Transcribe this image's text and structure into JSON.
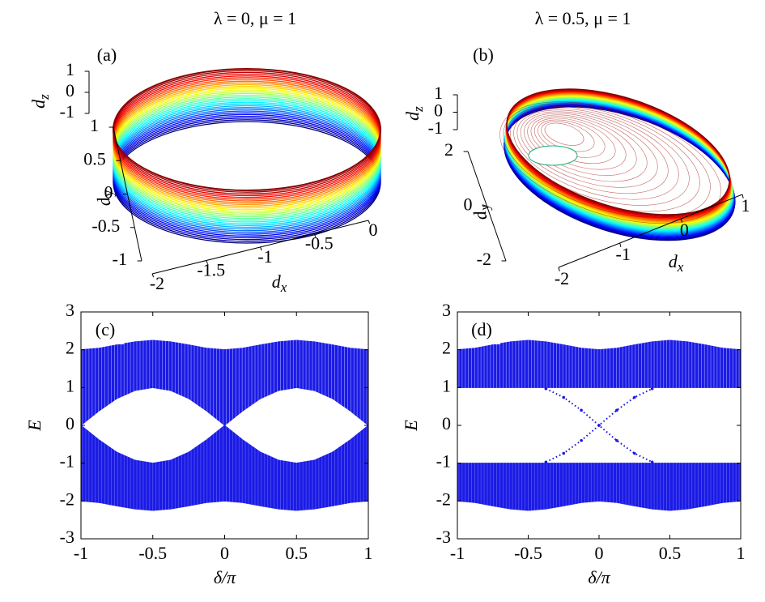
{
  "chart_data": [
    {
      "type": "surface3d",
      "title": "λ = 0,  μ = 1",
      "annotation": "(a)",
      "xlabel": [
        "d",
        "x"
      ],
      "ylabel": [
        "d",
        "y"
      ],
      "zlabel": [
        "d",
        "z"
      ],
      "xlim": [
        -2,
        0
      ],
      "xticks": [
        -2,
        -1.5,
        -1,
        -0.5,
        0
      ],
      "ylim": [
        -1,
        1
      ],
      "yticks": [
        -1,
        -0.5,
        0,
        0.5,
        1
      ],
      "zlim": [
        -1,
        1
      ],
      "zticks": [
        -1,
        0,
        1
      ]
    },
    {
      "type": "surface3d",
      "title": "λ = 0.5,  μ = 1",
      "annotation": "(b)",
      "xlabel": [
        "d",
        "x"
      ],
      "ylabel": [
        "d",
        "y"
      ],
      "zlabel": [
        "d",
        "z"
      ],
      "xlim": [
        -2,
        1
      ],
      "xticks": [
        -2,
        -1,
        0,
        1
      ],
      "ylim": [
        -2,
        2
      ],
      "yticks": [
        -2,
        0,
        2
      ],
      "zlim": [
        -1,
        1
      ],
      "zticks": [
        -1,
        0,
        1
      ]
    },
    {
      "type": "band",
      "annotation": "(c)",
      "xlabel": "δ/π",
      "ylabel": "E",
      "x": [
        -1,
        -0.875,
        -0.75,
        -0.625,
        -0.5,
        -0.375,
        -0.25,
        -0.125,
        0,
        0.125,
        0.25,
        0.375,
        0.5,
        0.625,
        0.75,
        0.875,
        1
      ],
      "xlim": [
        -1,
        1
      ],
      "xticks": [
        -1,
        -0.5,
        0,
        0.5,
        1
      ],
      "ylim": [
        -3,
        3
      ],
      "yticks": [
        -3,
        -2,
        -1,
        0,
        1,
        2,
        3
      ],
      "series": [
        {
          "color": "#1a1ae6",
          "values": [
            2,
            2.04,
            2.13,
            2.21,
            2.25,
            2.21,
            2.13,
            2.04,
            2,
            2.04,
            2.13,
            2.21,
            2.25,
            2.21,
            2.13,
            2.04,
            2
          ],
          "base": [
            0,
            0.38,
            0.71,
            0.92,
            1,
            0.92,
            0.71,
            0.38,
            0,
            0.38,
            0.71,
            0.92,
            1,
            0.92,
            0.71,
            0.38,
            0
          ]
        },
        {
          "color": "#1a1ae6",
          "values": [
            0,
            -0.38,
            -0.71,
            -0.92,
            -1,
            -0.92,
            -0.71,
            -0.38,
            0,
            -0.38,
            -0.71,
            -0.92,
            -1,
            -0.92,
            -0.71,
            -0.38,
            0
          ],
          "base": [
            -2,
            -2.04,
            -2.13,
            -2.21,
            -2.25,
            -2.21,
            -2.13,
            -2.04,
            -2,
            -2.04,
            -2.13,
            -2.21,
            -2.25,
            -2.21,
            -2.13,
            -2.04,
            -2
          ]
        }
      ]
    },
    {
      "type": "band",
      "annotation": "(d)",
      "xlabel": "δ/π",
      "ylabel": "E",
      "x": [
        -1,
        -0.875,
        -0.75,
        -0.625,
        -0.5,
        -0.375,
        -0.25,
        -0.125,
        0,
        0.125,
        0.25,
        0.375,
        0.5,
        0.625,
        0.75,
        0.875,
        1
      ],
      "xlim": [
        -1,
        1
      ],
      "xticks": [
        -1,
        -0.5,
        0,
        0.5,
        1
      ],
      "ylim": [
        -3,
        3
      ],
      "yticks": [
        -3,
        -2,
        -1,
        0,
        1,
        2,
        3
      ],
      "series": [
        {
          "color": "#1a1ae6",
          "values": [
            2,
            2.04,
            2.13,
            2.21,
            2.25,
            2.21,
            2.13,
            2.04,
            2,
            2.04,
            2.13,
            2.21,
            2.25,
            2.21,
            2.13,
            2.04,
            2
          ],
          "base": [
            1,
            1,
            1,
            1,
            1,
            1,
            1,
            1,
            1,
            1,
            1,
            1,
            1,
            1,
            1,
            1,
            1
          ]
        },
        {
          "color": "#1a1ae6",
          "values": [
            -1,
            -1,
            -1,
            -1,
            -1,
            -1,
            -1,
            -1,
            -1,
            -1,
            -1,
            -1,
            -1,
            -1,
            -1,
            -1,
            -1
          ],
          "base": [
            -2,
            -2.04,
            -2.13,
            -2.21,
            -2.25,
            -2.21,
            -2.13,
            -2.04,
            -2,
            -2.04,
            -2.13,
            -2.21,
            -2.25,
            -2.21,
            -2.13,
            -2.04,
            -2
          ]
        },
        {
          "color": "#1a1ae6",
          "values": [
            null,
            null,
            null,
            null,
            null,
            0.97,
            0.74,
            0.4,
            0,
            -0.4,
            -0.74,
            -0.97,
            null,
            null,
            null,
            null,
            null
          ]
        },
        {
          "color": "#1a1ae6",
          "values": [
            null,
            null,
            null,
            null,
            null,
            -0.97,
            -0.74,
            -0.4,
            0,
            0.4,
            0.74,
            0.97,
            null,
            null,
            null,
            null,
            null
          ]
        }
      ]
    }
  ]
}
